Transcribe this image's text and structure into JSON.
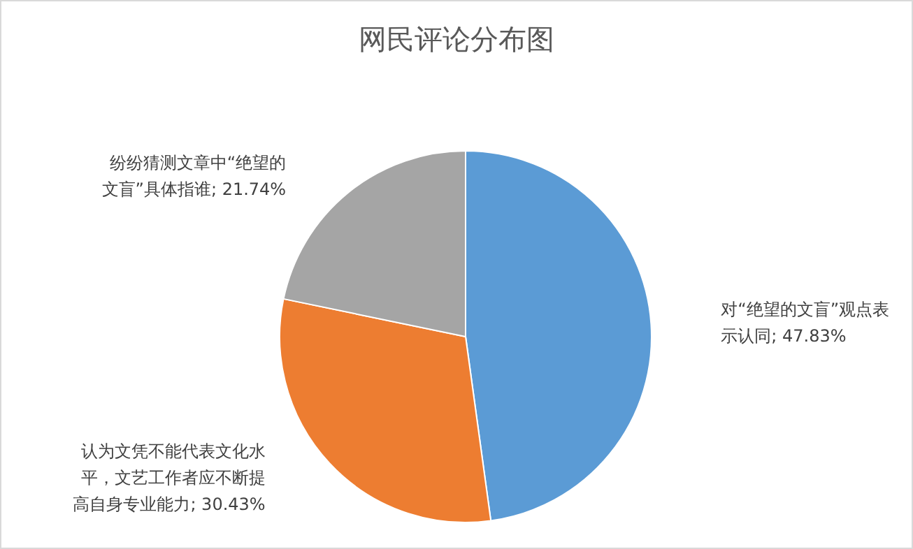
{
  "chart_data": {
    "type": "pie",
    "title": "网民评论分布图",
    "categories": [
      "对“绝望的文盲”观点表示认同",
      "认为文凭不能代表文化水平，文艺工作者应不断提高自身专业能力",
      "纷纷猜测文章中“绝望的文盲”具体指谁"
    ],
    "values": [
      47.83,
      30.43,
      21.74
    ],
    "value_labels": [
      "47.83%",
      "30.43%",
      "21.74%"
    ],
    "colors": [
      "#5b9bd5",
      "#ed7d31",
      "#a5a5a5"
    ],
    "legend": false
  }
}
